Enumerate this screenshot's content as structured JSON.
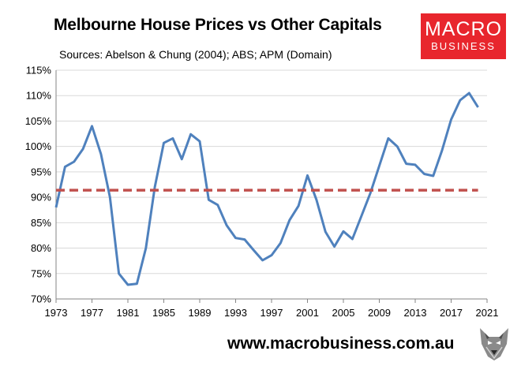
{
  "chart_data": {
    "type": "line",
    "title": "Melbourne House Prices vs Other Capitals",
    "subtitle": "Sources: Abelson & Chung (2004); ABS; APM (Domain)",
    "xlabel": "",
    "ylabel": "",
    "xlim": [
      1973,
      2021
    ],
    "ylim": [
      70,
      115
    ],
    "x_ticks": [
      "1973",
      "1977",
      "1981",
      "1985",
      "1989",
      "1993",
      "1997",
      "2001",
      "2005",
      "2009",
      "2013",
      "2017",
      "2021"
    ],
    "y_ticks": [
      "70%",
      "75%",
      "80%",
      "85%",
      "90%",
      "95%",
      "100%",
      "105%",
      "110%",
      "115%"
    ],
    "grid": "horizontal",
    "series": [
      {
        "color": "#4f81bd",
        "style": "solid",
        "x": [
          1973,
          1974,
          1975,
          1976,
          1977,
          1978,
          1979,
          1980,
          1981,
          1982,
          1983,
          1984,
          1985,
          1986,
          1987,
          1988,
          1989,
          1990,
          1991,
          1992,
          1993,
          1994,
          1995,
          1996,
          1997,
          1998,
          1999,
          2000,
          2001,
          2002,
          2003,
          2004,
          2005,
          2006,
          2007,
          2008,
          2009,
          2010,
          2011,
          2012,
          2013,
          2014,
          2015,
          2016,
          2017,
          2018,
          2019,
          2020
        ],
        "values": [
          88,
          96,
          97,
          99.5,
          104,
          98.5,
          90,
          75,
          72.8,
          73,
          80,
          92,
          100.7,
          101.6,
          97.5,
          102.4,
          101,
          89.5,
          88.5,
          84.5,
          82,
          81.7,
          79.6,
          77.6,
          78.6,
          81,
          85.5,
          88.3,
          94.3,
          89.5,
          83.2,
          80.3,
          83.3,
          81.8,
          86.3,
          90.8,
          96.2,
          101.6,
          100,
          96.6,
          96.4,
          94.6,
          94.2,
          99.3,
          105.3,
          109.1,
          110.5,
          107.7
        ]
      },
      {
        "color": "#c0504d",
        "style": "dashed",
        "x": [
          1973,
          2020
        ],
        "values": [
          91.4,
          91.4
        ]
      }
    ]
  },
  "logo": {
    "line1": "MACRO",
    "line2": "BUSINESS"
  },
  "footer": {
    "url": "www.macrobusiness.com.au"
  },
  "colors": {
    "brand": "#e8262d",
    "line": "#4f81bd",
    "average": "#c0504d",
    "grid": "#d9d9d9"
  },
  "icons": {
    "logo_icon": "wolf-icon"
  }
}
